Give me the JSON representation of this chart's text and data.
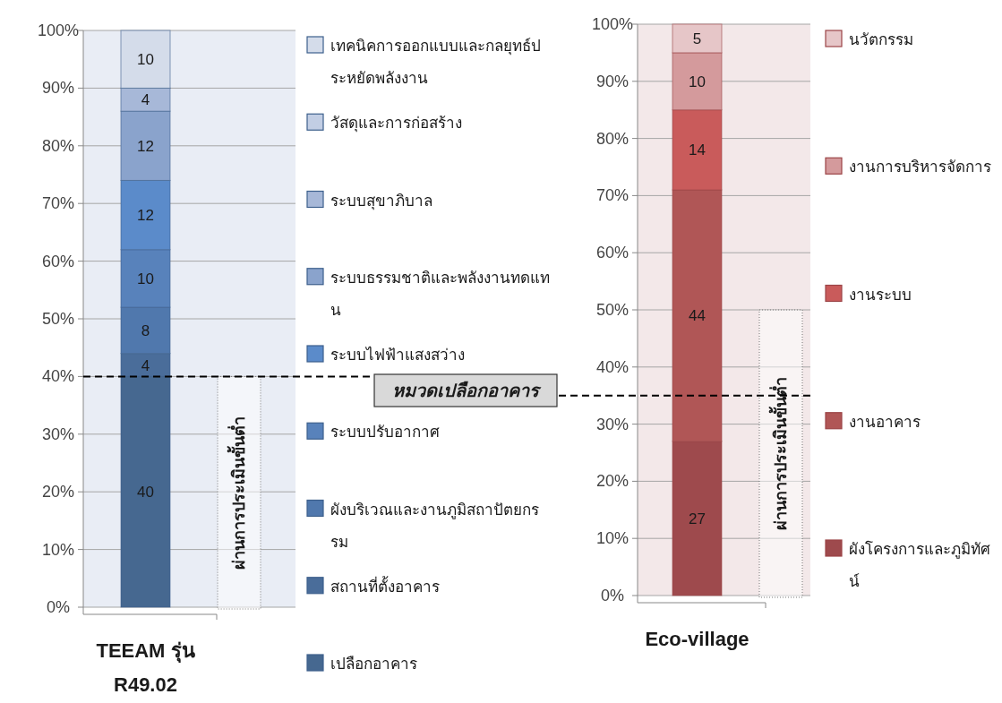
{
  "chart_data": [
    {
      "type": "bar",
      "stacked": true,
      "categories": [
        "TEEAM รุ่น R49.02"
      ],
      "ylim": [
        0,
        100
      ],
      "yticks": [
        {
          "value": 0,
          "label": "0%"
        },
        {
          "value": 10,
          "label": "10%"
        },
        {
          "value": 20,
          "label": "20%"
        },
        {
          "value": 30,
          "label": "30%"
        },
        {
          "value": 40,
          "label": "40%"
        },
        {
          "value": 50,
          "label": "50%"
        },
        {
          "value": 60,
          "label": "60%"
        },
        {
          "value": 70,
          "label": "70%"
        },
        {
          "value": 80,
          "label": "80%"
        },
        {
          "value": 90,
          "label": "90%"
        },
        {
          "value": 100,
          "label": "100%"
        }
      ],
      "grid": "y",
      "legend": "right",
      "data_labels": true,
      "series": [
        {
          "name": "เปลือกอาคาร",
          "color": "#466890",
          "values": [
            40
          ]
        },
        {
          "name": "สถานที่ตั้งอาคาร",
          "color": "#4a6d9a",
          "values": [
            4
          ]
        },
        {
          "name": "ผังบริเวณและงานภูมิสถาปัตยกรรม",
          "color": "#5078ad",
          "values": [
            8
          ]
        },
        {
          "name": "ระบบปรับอากาศ",
          "color": "#5882bb",
          "values": [
            10
          ]
        },
        {
          "name": "ระบบไฟฟ้าแสงสว่าง",
          "color": "#5b8bca",
          "values": [
            12
          ]
        },
        {
          "name": "ระบบธรรมชาติและพลังงานทดแทน",
          "color": "#8aa3cc",
          "values": [
            12
          ]
        },
        {
          "name": "ระบบสุขาภิบาล",
          "color": "#a7b8d8",
          "values": [
            4
          ]
        },
        {
          "name": "วัสดุและการก่อสร้าง",
          "color": "#c2cee4",
          "values": [
            null
          ]
        },
        {
          "name": "เทคนิคการออกแบบและกลยุทธ์ประหยัดพลังงาน",
          "color": "#d4dcea",
          "values": [
            10
          ]
        }
      ],
      "ref_lines": [
        {
          "axis": "y",
          "value": 40,
          "line_style": "dashed",
          "color": "#000000"
        }
      ],
      "bands": [
        {
          "axis": "y",
          "from": 0,
          "to": 40,
          "label": "ผ่านการประเมินขั้นต่ำ"
        }
      ],
      "annotations": [
        "หมวดเปลือกอาคาร"
      ]
    },
    {
      "type": "bar",
      "stacked": true,
      "categories": [
        "Eco-village"
      ],
      "ylim": [
        0,
        100
      ],
      "yticks": [
        {
          "value": 0,
          "label": "0%"
        },
        {
          "value": 10,
          "label": "10%"
        },
        {
          "value": 20,
          "label": "20%"
        },
        {
          "value": 30,
          "label": "30%"
        },
        {
          "value": 40,
          "label": "40%"
        },
        {
          "value": 50,
          "label": "50%"
        },
        {
          "value": 60,
          "label": "60%"
        },
        {
          "value": 70,
          "label": "70%"
        },
        {
          "value": 80,
          "label": "80%"
        },
        {
          "value": 90,
          "label": "90%"
        },
        {
          "value": 100,
          "label": "100%"
        }
      ],
      "grid": "y",
      "legend": "right",
      "data_labels": true,
      "series": [
        {
          "name": "ผังโครงการและภูมิทัศน์",
          "color": "#9e4a4d",
          "values": [
            27
          ]
        },
        {
          "name": "งานอาคาร",
          "color": "#b05656",
          "values": [
            44
          ]
        },
        {
          "name": "งานระบบ",
          "color": "#c95b5b",
          "values": [
            14
          ]
        },
        {
          "name": "งานการบริหารจัดการ",
          "color": "#d49a9c",
          "values": [
            10
          ]
        },
        {
          "name": "นวัตกรรม",
          "color": "#e6c6c8",
          "values": [
            5
          ]
        }
      ],
      "ref_lines": [
        {
          "axis": "y",
          "value": 35,
          "line_style": "dashed",
          "color": "#000000"
        }
      ],
      "bands": [
        {
          "axis": "y",
          "from": 0,
          "to": 50,
          "label": "ผ่านการประเมินขั้นต่ำ"
        }
      ]
    }
  ]
}
